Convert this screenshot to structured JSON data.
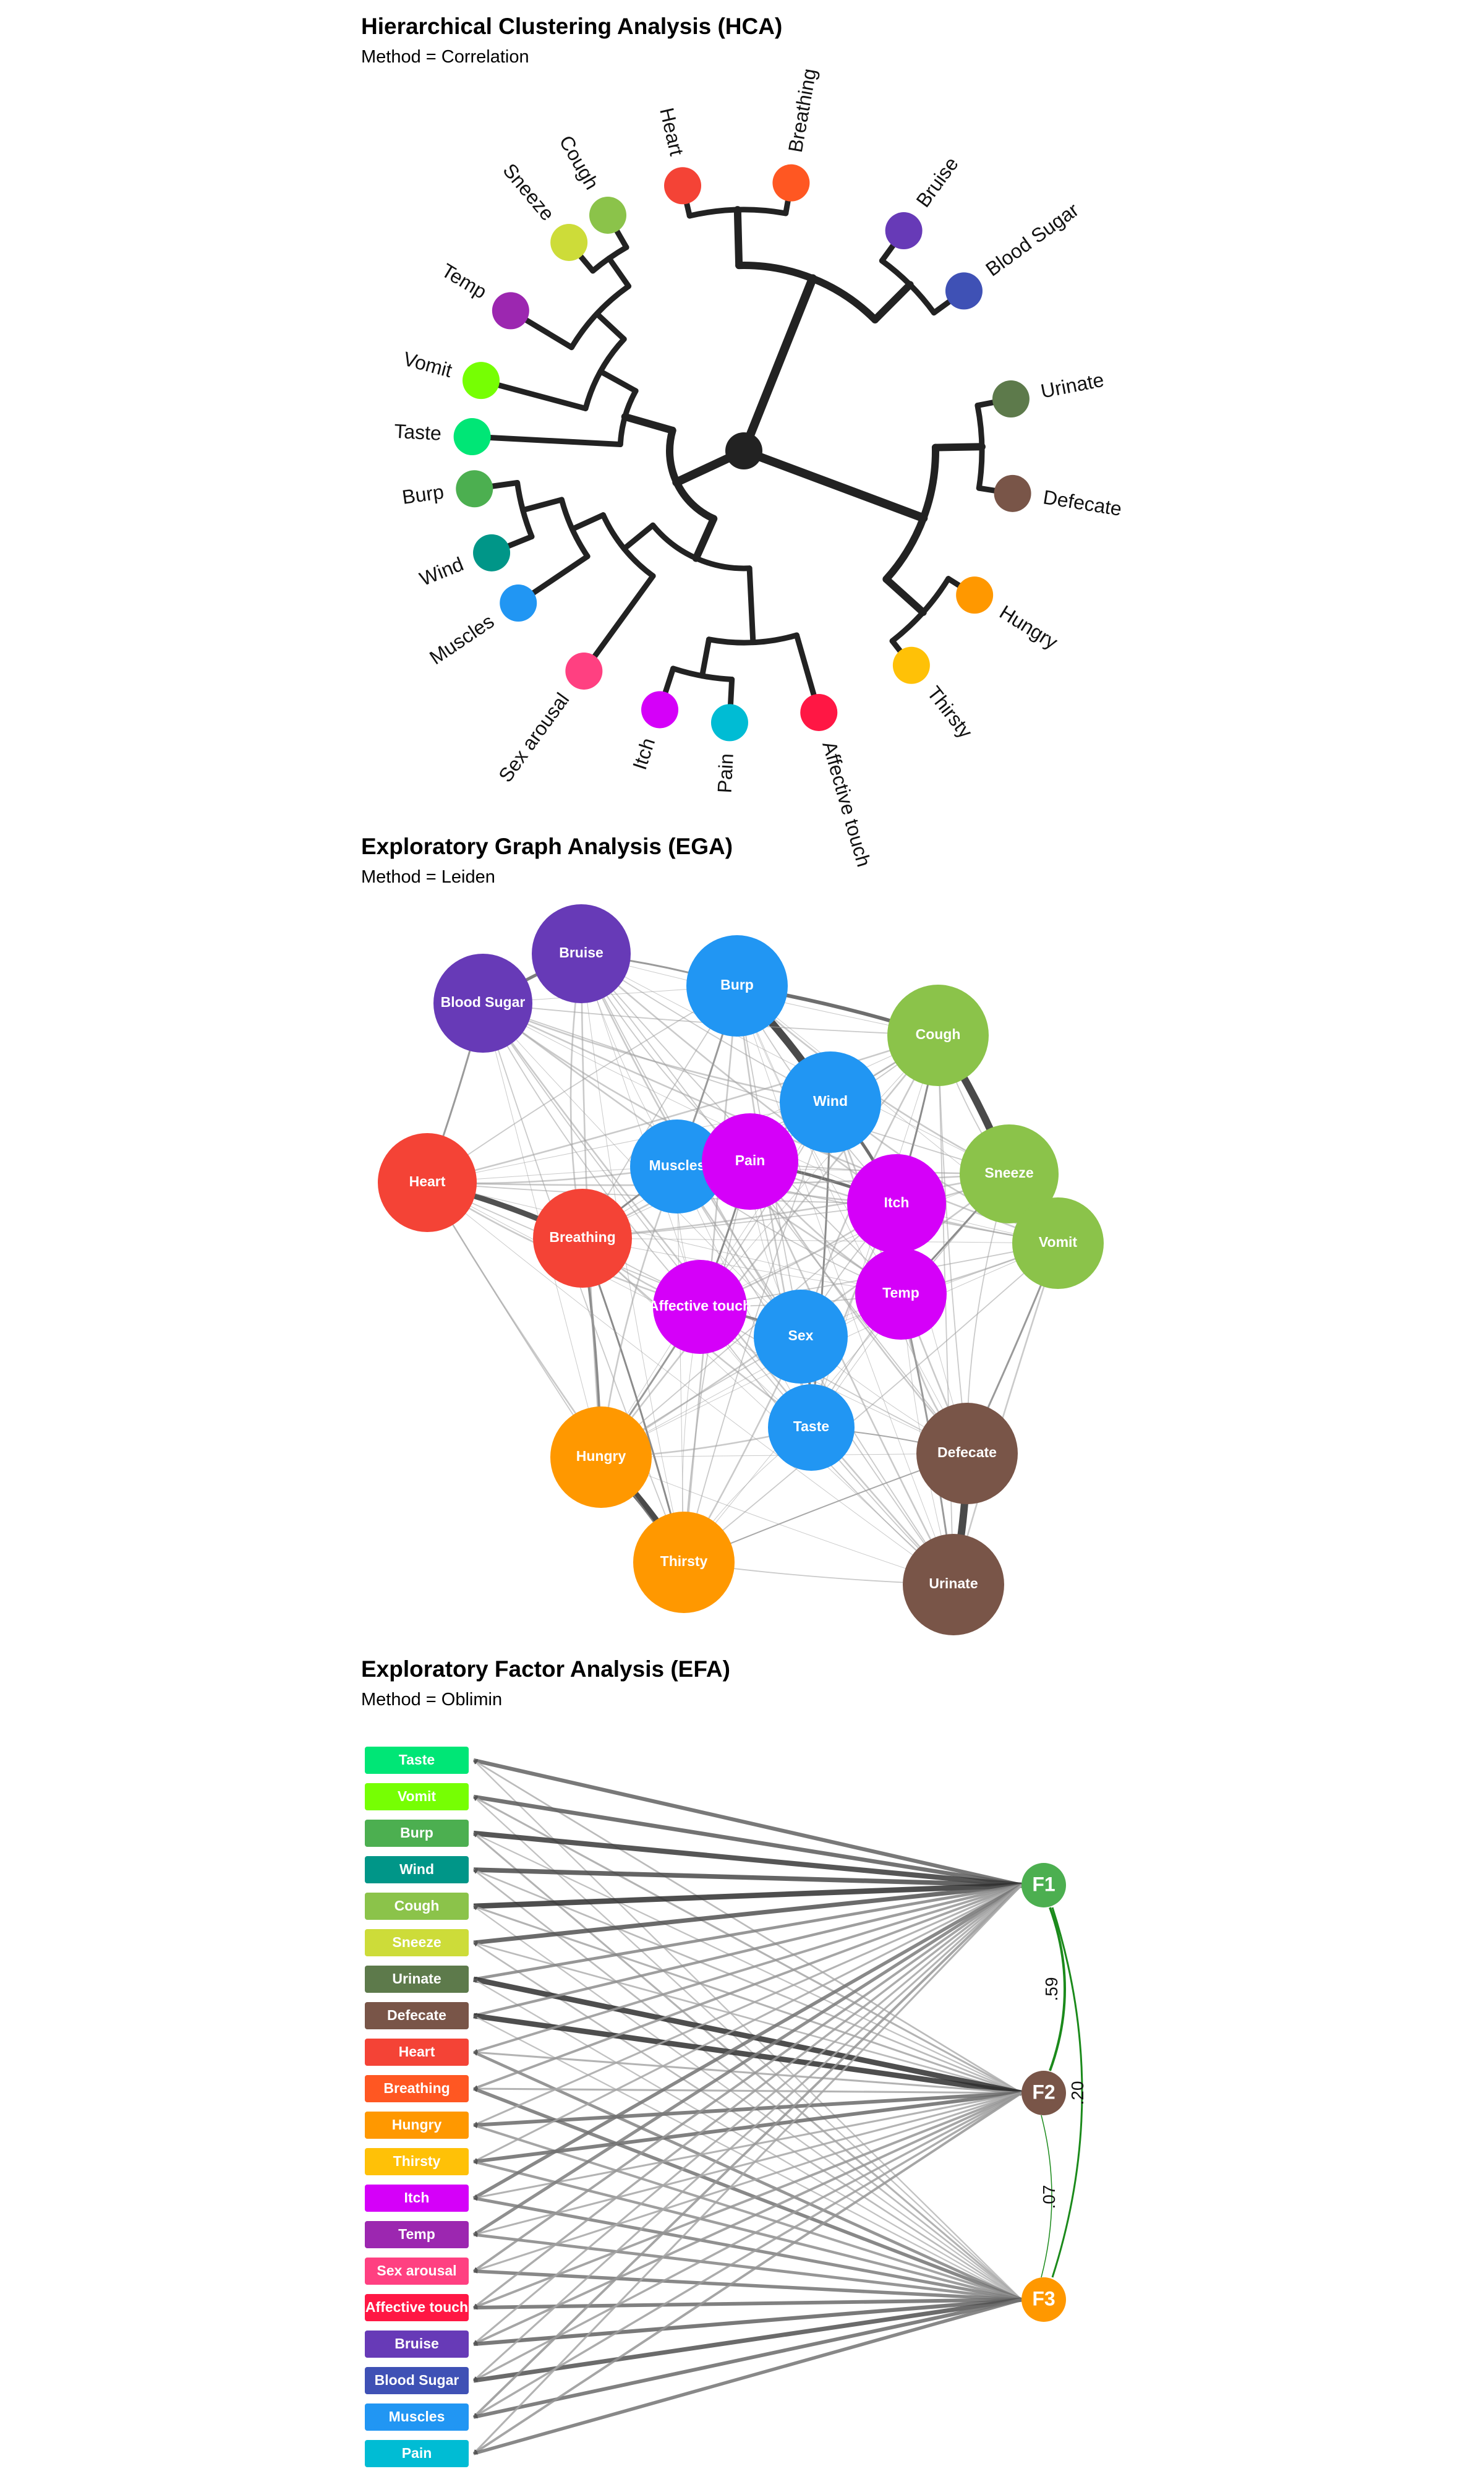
{
  "hca": {
    "title": "Hierarchical Clustering Analysis (HCA)",
    "subtitle": "Method = Correlation",
    "leaves": [
      {
        "label": "Taste",
        "color": "#00E676"
      },
      {
        "label": "Vomit",
        "color": "#76FF03"
      },
      {
        "label": "Temp",
        "color": "#9C27B0"
      },
      {
        "label": "Sneeze",
        "color": "#CDDC39"
      },
      {
        "label": "Cough",
        "color": "#8BC34A"
      },
      {
        "label": "Heart",
        "color": "#F44336"
      },
      {
        "label": "Breathing",
        "color": "#FF5722"
      },
      {
        "label": "Bruise",
        "color": "#673AB7"
      },
      {
        "label": "Blood Sugar",
        "color": "#3F51B5"
      },
      {
        "label": "Urinate",
        "color": "#5D7A4B"
      },
      {
        "label": "Defecate",
        "color": "#795548"
      },
      {
        "label": "Hungry",
        "color": "#FF9800"
      },
      {
        "label": "Thirsty",
        "color": "#FFC107"
      },
      {
        "label": "Affective touch",
        "color": "#FF1744"
      },
      {
        "label": "Pain",
        "color": "#00BCD4"
      },
      {
        "label": "Itch",
        "color": "#D500F9"
      },
      {
        "label": "Sex arousal",
        "color": "#FF4081"
      },
      {
        "label": "Muscles",
        "color": "#2196F3"
      },
      {
        "label": "Wind",
        "color": "#009688"
      },
      {
        "label": "Burp",
        "color": "#4CAF50"
      }
    ]
  },
  "ega": {
    "title": "Exploratory Graph Analysis (EGA)",
    "subtitle": "Method = Leiden",
    "nodes": [
      {
        "id": "Bruise",
        "label": "Bruise",
        "color": "#673AB7"
      },
      {
        "id": "BloodSugar",
        "label": "Blood Sugar",
        "color": "#673AB7"
      },
      {
        "id": "Burp",
        "label": "Burp",
        "color": "#2196F3"
      },
      {
        "id": "Cough",
        "label": "Cough",
        "color": "#8BC34A"
      },
      {
        "id": "Wind",
        "label": "Wind",
        "color": "#2196F3"
      },
      {
        "id": "Heart",
        "label": "Heart",
        "color": "#F44336"
      },
      {
        "id": "Muscles",
        "label": "Muscles",
        "color": "#2196F3"
      },
      {
        "id": "Pain",
        "label": "Pain",
        "color": "#D500F9"
      },
      {
        "id": "Itch",
        "label": "Itch",
        "color": "#D500F9"
      },
      {
        "id": "Sneeze",
        "label": "Sneeze",
        "color": "#8BC34A"
      },
      {
        "id": "Vomit",
        "label": "Vomit",
        "color": "#8BC34A"
      },
      {
        "id": "Breathing",
        "label": "Breathing",
        "color": "#F44336"
      },
      {
        "id": "Affective",
        "label": "Affective touch",
        "color": "#D500F9"
      },
      {
        "id": "Temp",
        "label": "Temp",
        "color": "#D500F9"
      },
      {
        "id": "Sex",
        "label": "Sex",
        "color": "#2196F3"
      },
      {
        "id": "Taste",
        "label": "Taste",
        "color": "#2196F3"
      },
      {
        "id": "Defecate",
        "label": "Defecate",
        "color": "#795548"
      },
      {
        "id": "Hungry",
        "label": "Hungry",
        "color": "#FF9800"
      },
      {
        "id": "Thirsty",
        "label": "Thirsty",
        "color": "#FF9800"
      },
      {
        "id": "Urinate",
        "label": "Urinate",
        "color": "#795548"
      }
    ]
  },
  "efa": {
    "title": "Exploratory Factor Analysis (EFA)",
    "subtitle": "Method = Oblimin",
    "items": [
      {
        "label": "Taste",
        "color": "#00E676"
      },
      {
        "label": "Vomit",
        "color": "#76FF03"
      },
      {
        "label": "Burp",
        "color": "#4CAF50"
      },
      {
        "label": "Wind",
        "color": "#009688"
      },
      {
        "label": "Cough",
        "color": "#8BC34A"
      },
      {
        "label": "Sneeze",
        "color": "#CDDC39"
      },
      {
        "label": "Urinate",
        "color": "#5D7A4B"
      },
      {
        "label": "Defecate",
        "color": "#795548"
      },
      {
        "label": "Heart",
        "color": "#F44336"
      },
      {
        "label": "Breathing",
        "color": "#FF5722"
      },
      {
        "label": "Hungry",
        "color": "#FF9800"
      },
      {
        "label": "Thirsty",
        "color": "#FFC107"
      },
      {
        "label": "Itch",
        "color": "#D500F9"
      },
      {
        "label": "Temp",
        "color": "#9C27B0"
      },
      {
        "label": "Sex arousal",
        "color": "#FF4081"
      },
      {
        "label": "Affective touch",
        "color": "#FF1744"
      },
      {
        "label": "Bruise",
        "color": "#673AB7"
      },
      {
        "label": "Blood Sugar",
        "color": "#3F51B5"
      },
      {
        "label": "Muscles",
        "color": "#2196F3"
      },
      {
        "label": "Pain",
        "color": "#00BCD4"
      }
    ],
    "factors": [
      {
        "label": "F1",
        "color": "#4CAF50"
      },
      {
        "label": "F2",
        "color": "#795548"
      },
      {
        "label": "F3",
        "color": "#FF9800"
      }
    ],
    "correlations": [
      {
        "pair": "F1-F2",
        "label": ".59"
      },
      {
        "pair": "F1-F3",
        "label": ".20"
      },
      {
        "pair": "F2-F3",
        "label": ".07"
      }
    ]
  }
}
